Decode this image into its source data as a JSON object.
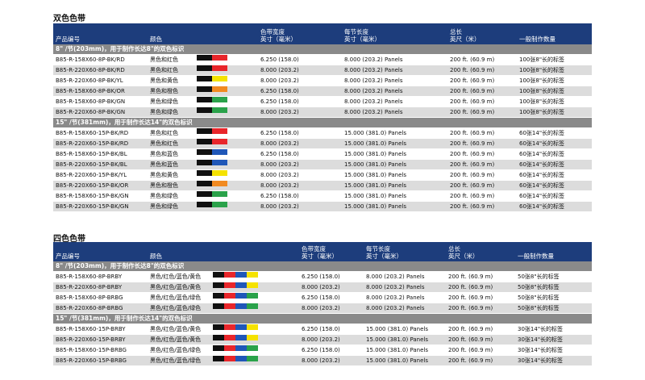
{
  "colors": {
    "header_bg": "#1d3d7c",
    "group_bg": "#8a8a8a",
    "alt_row": "#dcdcdc",
    "black": "#111111",
    "red": "#e8262b",
    "yellow": "#f5e200",
    "orange": "#f18a21",
    "green": "#2aa24a",
    "blue": "#1f57b8"
  },
  "two_color": {
    "title": "双色色带",
    "headers": {
      "part": "产品编号",
      "color": "颜色",
      "width": "色带宽度\n英寸（毫米）",
      "length": "每节长度\n英寸（毫米）",
      "total": "总长\n英尺（米）",
      "qty": "一般制作数量"
    },
    "groups": [
      {
        "label": "8\" /节(203mm)，用于制作长达8\"的双色标识",
        "rows": [
          {
            "part": "B85-R-158X60-8P-BK/RD",
            "color": "黑色和红色",
            "swatch": [
              "black",
              "red"
            ],
            "width": "6.250 (158.0)",
            "length": "8.000 (203.2) Panels",
            "total": "200 ft. (60.9 m)",
            "qty": "100张8\"长的标签"
          },
          {
            "part": "B85-R-220X60-8P-BK/RD",
            "color": "黑色和红色",
            "swatch": [
              "black",
              "red"
            ],
            "width": "8.000 (203.2)",
            "length": "8.000 (203.2) Panels",
            "total": "200 ft. (60.9 m)",
            "qty": "100张8\"长的标签"
          },
          {
            "part": "B85-R-220X60-8P-BK/YL",
            "color": "黑色和黄色",
            "swatch": [
              "black",
              "yellow"
            ],
            "width": "8.000 (203.2)",
            "length": "8.000 (203.2) Panels",
            "total": "200 ft. (60.9 m)",
            "qty": "100张8\"长的标签"
          },
          {
            "part": "B85-R-158X60-8P-BK/OR",
            "color": "黑色和橙色",
            "swatch": [
              "black",
              "orange"
            ],
            "width": "6.250 (158.0)",
            "length": "8.000 (203.2) Panels",
            "total": "200 ft. (60.9 m)",
            "qty": "100张8\"长的标签"
          },
          {
            "part": "B85-R-158X60-8P-BK/GN",
            "color": "黑色和绿色",
            "swatch": [
              "black",
              "green"
            ],
            "width": "6.250 (158.0)",
            "length": "8.000 (203.2) Panels",
            "total": "200 ft. (60.9 m)",
            "qty": "100张8\"长的标签"
          },
          {
            "part": "B85-R-220X60-8P-BK/GN",
            "color": "黑色和绿色",
            "swatch": [
              "black",
              "green"
            ],
            "width": "8.000 (203.2)",
            "length": "8.000 (203.2) Panels",
            "total": "200 ft. (60.9 m)",
            "qty": "100张8\"长的标签"
          }
        ]
      },
      {
        "label": "15\" /节(381mm)，用于制作长达14\"的双色标识",
        "rows": [
          {
            "part": "B85-R-158X60-15P-BK/RD",
            "color": "黑色和红色",
            "swatch": [
              "black",
              "red"
            ],
            "width": "6.250 (158.0)",
            "length": "15.000 (381.0) Panels",
            "total": "200 ft. (60.9 m)",
            "qty": "60张14\"长的标签"
          },
          {
            "part": "B85-R-220X60-15P-BK/RD",
            "color": "黑色和红色",
            "swatch": [
              "black",
              "red"
            ],
            "width": "8.000 (203.2)",
            "length": "15.000 (381.0) Panels",
            "total": "200 ft. (60.9 m)",
            "qty": "60张14\"长的标签"
          },
          {
            "part": "B85-R-158X60-15P-BK/BL",
            "color": "黑色和蓝色",
            "swatch": [
              "black",
              "blue"
            ],
            "width": "6.250 (158.0)",
            "length": "15.000 (381.0) Panels",
            "total": "200 ft. (60.9 m)",
            "qty": "60张14\"长的标签"
          },
          {
            "part": "B85-R-220X60-15P-BK/BL",
            "color": "黑色和蓝色",
            "swatch": [
              "black",
              "blue"
            ],
            "width": "8.000 (203.2)",
            "length": "15.000 (381.0) Panels",
            "total": "200 ft. (60.9 m)",
            "qty": "60张14\"长的标签"
          },
          {
            "part": "B85-R-220X60-15P-BK/YL",
            "color": "黑色和黄色",
            "swatch": [
              "black",
              "yellow"
            ],
            "width": "8.000 (203.2)",
            "length": "15.000 (381.0) Panels",
            "total": "200 ft. (60.9 m)",
            "qty": "60张14\"长的标签"
          },
          {
            "part": "B85-R-220X60-15P-BK/OR",
            "color": "黑色和橙色",
            "swatch": [
              "black",
              "orange"
            ],
            "width": "8.000 (203.2)",
            "length": "15.000 (381.0) Panels",
            "total": "200 ft. (60.9 m)",
            "qty": "60张14\"长的标签"
          },
          {
            "part": "B85-R-158X60-15P-BK/GN",
            "color": "黑色和绿色",
            "swatch": [
              "black",
              "green"
            ],
            "width": "6.250 (158.0)",
            "length": "15.000 (381.0) Panels",
            "total": "200 ft. (60.9 m)",
            "qty": "60张14\"长的标签"
          },
          {
            "part": "B85-R-220X60-15P-BK/GN",
            "color": "黑色和绿色",
            "swatch": [
              "black",
              "green"
            ],
            "width": "8.000 (203.2)",
            "length": "15.000 (381.0) Panels",
            "total": "200 ft. (60.9 m)",
            "qty": "60张14\"长的标签"
          }
        ]
      }
    ]
  },
  "four_color": {
    "title": "四色色带",
    "headers": {
      "part": "产品编号",
      "color": "颜色",
      "width": "色带宽度\n英寸（毫米）",
      "length": "每节长度\n英寸（毫米）",
      "total": "总长\n英尺（米）",
      "qty": "一般制作数量"
    },
    "groups": [
      {
        "label": "8\" /节(203mm)，用于制作长达8\"的双色标识",
        "rows": [
          {
            "part": "B85-R-158X60-8P-BRBY",
            "color": "黑色/红色/蓝色/黄色",
            "swatch": [
              "black",
              "red",
              "blue",
              "yellow"
            ],
            "width": "6.250 (158.0)",
            "length": "8.000 (203.2) Panels",
            "total": "200 ft. (60.9 m)",
            "qty": "50张8\"长的标签"
          },
          {
            "part": "B85-R-220X60-8P-BRBY",
            "color": "黑色/红色/蓝色/黄色",
            "swatch": [
              "black",
              "red",
              "blue",
              "yellow"
            ],
            "width": "8.000 (203.2)",
            "length": "8.000 (203.2) Panels",
            "total": "200 ft. (60.9 m)",
            "qty": "50张8\"长的标签"
          },
          {
            "part": "B85-R-158X60-8P-BRBG",
            "color": "黑色/红色/蓝色/绿色",
            "swatch": [
              "black",
              "red",
              "blue",
              "green"
            ],
            "width": "6.250 (158.0)",
            "length": "8.000 (203.2) Panels",
            "total": "200 ft. (60.9 m)",
            "qty": "50张8\"长的标签"
          },
          {
            "part": "B85-R-220X60-8P-BRBG",
            "color": "黑色/红色/蓝色/绿色",
            "swatch": [
              "black",
              "red",
              "blue",
              "green"
            ],
            "width": "8.000 (203.2)",
            "length": "8.000 (203.2) Panels",
            "total": "200 ft. (60.9 m)",
            "qty": "50张8\"长的标签"
          }
        ]
      },
      {
        "label": "15\" /节(381mm)，用于制作长达14\"的双色标识",
        "rows": [
          {
            "part": "B85-R-158X60-15P-BRBY",
            "color": "黑色/红色/蓝色/黄色",
            "swatch": [
              "black",
              "red",
              "blue",
              "yellow"
            ],
            "width": "6.250 (158.0)",
            "length": "15.000 (381.0) Panels",
            "total": "200 ft. (60.9 m)",
            "qty": "30张14\"长的标签"
          },
          {
            "part": "B85-R-220X60-15P-BRBY",
            "color": "黑色/红色/蓝色/黄色",
            "swatch": [
              "black",
              "red",
              "blue",
              "yellow"
            ],
            "width": "8.000 (203.2)",
            "length": "15.000 (381.0) Panels",
            "total": "200 ft. (60.9 m)",
            "qty": "30张14\"长的标签"
          },
          {
            "part": "B85-R-158X60-15P-BRBG",
            "color": "黑色/红色/蓝色/绿色",
            "swatch": [
              "black",
              "red",
              "blue",
              "green"
            ],
            "width": "6.250 (158.0)",
            "length": "15.000 (381.0) Panels",
            "total": "200 ft. (60.9 m)",
            "qty": "30张14\"长的标签"
          },
          {
            "part": "B85-R-220X60-15P-BRBG",
            "color": "黑色/红色/蓝色/绿色",
            "swatch": [
              "black",
              "red",
              "blue",
              "green"
            ],
            "width": "8.000 (203.2)",
            "length": "15.000 (381.0) Panels",
            "total": "200 ft. (60.9 m)",
            "qty": "30张14\"长的标签"
          }
        ]
      }
    ]
  }
}
